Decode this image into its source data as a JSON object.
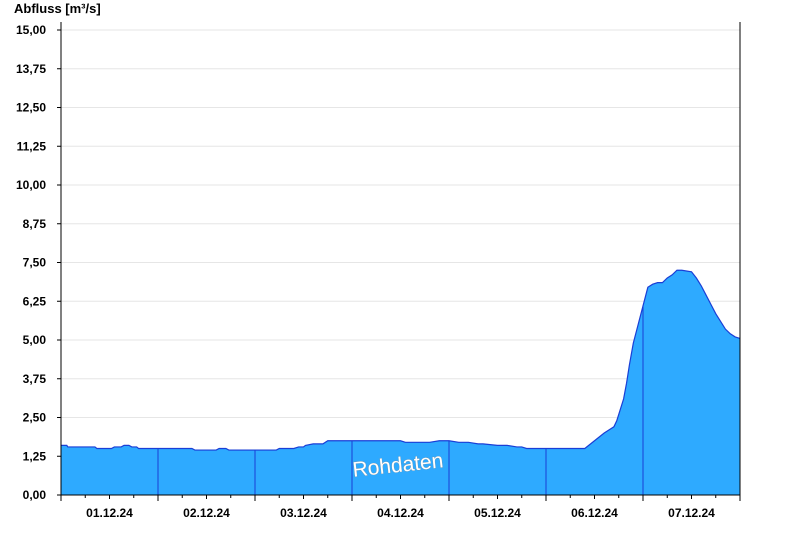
{
  "chart_data": {
    "type": "area",
    "ylabel": "Abfluss [m³/s]",
    "watermark": "Rohdaten",
    "ylim": [
      0,
      15
    ],
    "y_ticks": [
      "0,00",
      "1,25",
      "2,50",
      "3,75",
      "5,00",
      "6,25",
      "7,50",
      "8,75",
      "10,00",
      "11,25",
      "12,50",
      "13,75",
      "15,00"
    ],
    "y_tick_values": [
      0,
      1.25,
      2.5,
      3.75,
      5.0,
      6.25,
      7.5,
      8.75,
      10.0,
      11.25,
      12.5,
      13.75,
      15.0
    ],
    "x_ticks": [
      "01.12.24",
      "02.12.24",
      "03.12.24",
      "04.12.24",
      "05.12.24",
      "06.12.24",
      "07.12.24"
    ],
    "x_range_days": [
      0,
      7
    ],
    "series": [
      {
        "x_days": [
          0,
          0.06,
          0.07,
          0.35,
          0.37,
          0.52,
          0.55,
          0.62,
          0.65,
          0.7,
          0.73,
          0.78,
          0.8,
          1.0,
          1.35,
          1.38,
          1.6,
          1.63,
          1.7,
          1.73,
          2.0,
          2.22,
          2.25,
          2.3,
          2.4,
          2.45,
          2.5,
          2.52,
          2.6,
          2.7,
          2.75,
          2.9,
          3.0,
          3.1,
          3.15,
          3.2,
          3.3,
          3.4,
          3.45,
          3.5,
          3.55,
          3.6,
          3.65,
          3.75,
          3.8,
          3.9,
          4.0,
          4.1,
          4.2,
          4.3,
          4.35,
          4.5,
          4.6,
          4.7,
          4.75,
          4.8,
          4.9,
          5.0,
          5.1,
          5.2,
          5.3,
          5.4,
          5.5,
          5.6,
          5.65,
          5.7,
          5.73,
          5.76,
          5.8,
          5.83,
          5.86,
          5.9,
          5.95,
          6.0,
          6.05,
          6.1,
          6.15,
          6.2,
          6.25,
          6.3,
          6.35,
          6.4,
          6.5,
          6.55,
          6.6,
          6.65,
          6.7,
          6.75,
          6.8,
          6.85,
          6.9,
          6.95,
          7.0
        ],
        "values": [
          1.6,
          1.6,
          1.55,
          1.55,
          1.5,
          1.5,
          1.55,
          1.55,
          1.6,
          1.6,
          1.55,
          1.55,
          1.5,
          1.5,
          1.5,
          1.45,
          1.45,
          1.5,
          1.5,
          1.45,
          1.45,
          1.45,
          1.5,
          1.5,
          1.5,
          1.55,
          1.55,
          1.6,
          1.65,
          1.65,
          1.75,
          1.75,
          1.75,
          1.75,
          1.75,
          1.75,
          1.75,
          1.75,
          1.75,
          1.75,
          1.7,
          1.7,
          1.7,
          1.7,
          1.7,
          1.75,
          1.75,
          1.7,
          1.7,
          1.65,
          1.65,
          1.6,
          1.6,
          1.55,
          1.55,
          1.5,
          1.5,
          1.5,
          1.5,
          1.5,
          1.5,
          1.5,
          1.75,
          2.0,
          2.1,
          2.2,
          2.4,
          2.7,
          3.1,
          3.6,
          4.2,
          4.9,
          5.5,
          6.1,
          6.7,
          6.8,
          6.85,
          6.85,
          7.0,
          7.1,
          7.25,
          7.25,
          7.2,
          7.0,
          6.75,
          6.45,
          6.15,
          5.85,
          5.6,
          5.35,
          5.2,
          5.1,
          5.05
        ]
      }
    ],
    "grid": true,
    "area_color": "#2eaaff",
    "line_color": "#1a3ed6"
  }
}
